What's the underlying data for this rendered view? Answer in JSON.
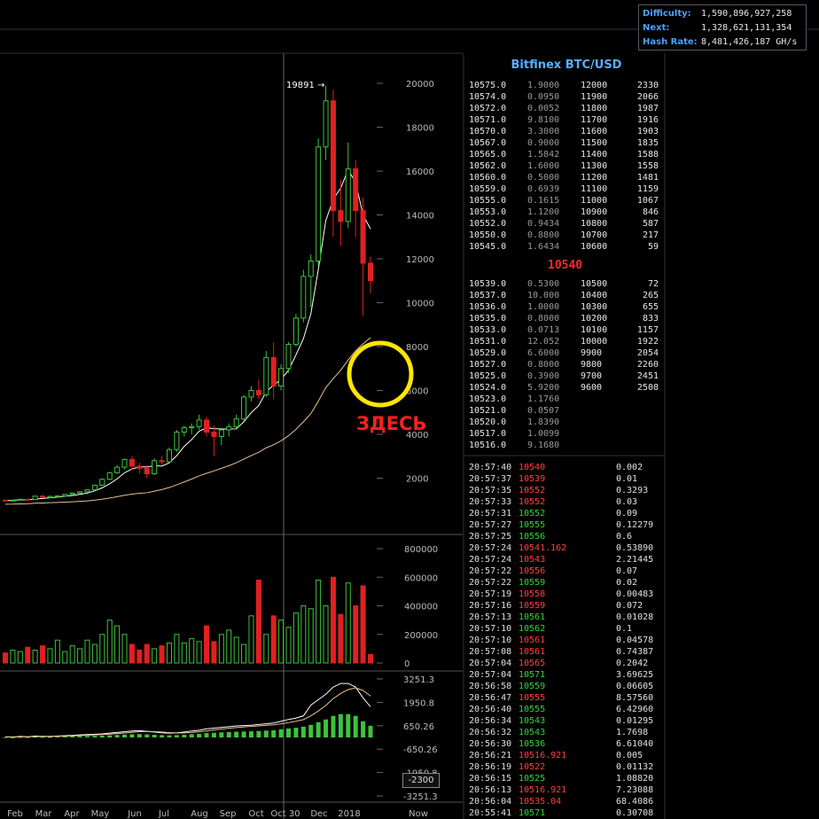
{
  "stats": {
    "difficulty_label": "Difficulty:",
    "difficulty": "1,590,896,927,258",
    "next_label": "Next:",
    "next": "1,328,621,131,354",
    "hashrate_label": "Hash Rate:",
    "hashrate": "8,481,426,187 GH/s"
  },
  "orderbook": {
    "title": "Bitfinex BTC/USD",
    "last_price": "10540",
    "asks": [
      [
        "10575.0",
        "1.9",
        "000",
        "12000",
        "2330"
      ],
      [
        "10574.0",
        "0.0950",
        "",
        "11900",
        "2066"
      ],
      [
        "10572.0",
        "0.0052",
        "",
        "11800",
        "1987"
      ],
      [
        "10571.0",
        "9.8100",
        "",
        "11700",
        "1916"
      ],
      [
        "10570.0",
        "3.3000",
        "",
        "11600",
        "1903"
      ],
      [
        "10567.0",
        "0.9000",
        "",
        "11500",
        "1835"
      ],
      [
        "10565.0",
        "1.5842",
        "",
        "11400",
        "1588"
      ],
      [
        "10562.0",
        "1.6000",
        "",
        "11300",
        "1558"
      ],
      [
        "10560.0",
        "0.5000",
        "",
        "11200",
        "1481"
      ],
      [
        "10559.0",
        "0.6939",
        "",
        "11100",
        "1159"
      ],
      [
        "10555.0",
        "0.1615",
        "",
        "11000",
        "1067"
      ],
      [
        "10553.0",
        "1.1200",
        "",
        "10900",
        "846"
      ],
      [
        "10552.0",
        "0.9434",
        "",
        "10800",
        "587"
      ],
      [
        "10550.0",
        "0.8800",
        "",
        "10700",
        "217"
      ],
      [
        "10545.0",
        "1.6434",
        "",
        "10600",
        "59"
      ]
    ],
    "bids": [
      [
        "10539.0",
        "0.5300",
        "",
        "10500",
        "72"
      ],
      [
        "10537.0",
        "10.000",
        "",
        "10400",
        "265"
      ],
      [
        "10536.0",
        "1.0000",
        "",
        "10300",
        "655"
      ],
      [
        "10535.0",
        "0.8000",
        "",
        "10200",
        "833"
      ],
      [
        "10533.0",
        "0.0713",
        "",
        "10100",
        "1157"
      ],
      [
        "10531.0",
        "12.052",
        "",
        "10000",
        "1922"
      ],
      [
        "10529.0",
        "6.6000",
        "",
        "9900",
        "2054"
      ],
      [
        "10527.0",
        "0.8000",
        "",
        "9800",
        "2260"
      ],
      [
        "10525.0",
        "0.3900",
        "",
        "9700",
        "2451"
      ],
      [
        "10524.0",
        "5.9200",
        "",
        "9600",
        "2508"
      ],
      [
        "10523.0",
        "1.1760",
        "",
        "",
        ""
      ],
      [
        "10521.0",
        "0.0507",
        "",
        "",
        ""
      ],
      [
        "10520.0",
        "1.8390",
        "",
        "",
        ""
      ],
      [
        "10517.0",
        "1.0099",
        "",
        "",
        ""
      ],
      [
        "10516.0",
        "9.1680",
        "",
        "",
        ""
      ]
    ]
  },
  "trades": [
    [
      "20:57:40",
      "10540",
      "dn",
      "0.002"
    ],
    [
      "20:57:37",
      "10539",
      "dn",
      "0.01"
    ],
    [
      "20:57:35",
      "10552",
      "dn",
      "0.3293"
    ],
    [
      "20:57:33",
      "10552",
      "dn",
      "0.03"
    ],
    [
      "20:57:31",
      "10552",
      "up",
      "0.09"
    ],
    [
      "20:57:27",
      "10555",
      "up",
      "0.12279"
    ],
    [
      "20:57:25",
      "10556",
      "up",
      "0.6"
    ],
    [
      "20:57:24",
      "10541.162",
      "dn",
      "0.53890"
    ],
    [
      "20:57:24",
      "10543",
      "dn",
      "2.21445"
    ],
    [
      "20:57:22",
      "10556",
      "dn",
      "0.07"
    ],
    [
      "20:57:22",
      "10559",
      "up",
      "0.02"
    ],
    [
      "20:57:19",
      "10558",
      "dn",
      "0.00483"
    ],
    [
      "20:57:16",
      "10559",
      "dn",
      "0.072"
    ],
    [
      "20:57:13",
      "10561",
      "up",
      "0.01028"
    ],
    [
      "20:57:10",
      "10562",
      "up",
      "0.1"
    ],
    [
      "20:57:10",
      "10561",
      "dn",
      "0.04578"
    ],
    [
      "20:57:08",
      "10561",
      "dn",
      "0.74387"
    ],
    [
      "20:57:04",
      "10565",
      "dn",
      "0.2042"
    ],
    [
      "20:57:04",
      "10571",
      "up",
      "3.69625"
    ],
    [
      "20:56:58",
      "10559",
      "up",
      "0.06605"
    ],
    [
      "20:56:47",
      "10555",
      "dn",
      "8.57560"
    ],
    [
      "20:56:40",
      "10555",
      "up",
      "6.42960"
    ],
    [
      "20:56:34",
      "10543",
      "up",
      "0.01295"
    ],
    [
      "20:56:32",
      "10543",
      "up",
      "1.7698"
    ],
    [
      "20:56:30",
      "10536",
      "up",
      "6.61040"
    ],
    [
      "20:56:21",
      "10516.921",
      "dn",
      "0.005"
    ],
    [
      "20:56:19",
      "10522",
      "dn",
      "0.01132"
    ],
    [
      "20:56:15",
      "10525",
      "up",
      "1.08820"
    ],
    [
      "20:56:13",
      "10516.921",
      "dn",
      "7.23088"
    ],
    [
      "20:56:04",
      "10535.04",
      "dn",
      "68.4086"
    ],
    [
      "20:55:41",
      "10571",
      "up",
      "0.30708"
    ]
  ],
  "chart_data": {
    "type": "candlestick",
    "price_ticks": [
      "2000",
      "4000",
      "6000",
      "8000",
      "10000",
      "12000",
      "14000",
      "16000",
      "18000",
      "20000"
    ],
    "volume_ticks": [
      "0",
      "200000",
      "400000",
      "600000",
      "800000"
    ],
    "macd_ticks": [
      "3251.3",
      "1950.8",
      "650.26",
      "-650.26",
      "-1950.8",
      "-3251.3"
    ],
    "date_labels": [
      "Feb",
      "Mar",
      "Apr",
      "May",
      "Jun",
      "Jul",
      "Aug",
      "Sep",
      "Oct",
      "Oct 30",
      "Dec",
      "2018",
      "Now"
    ],
    "peak_label": "19891 →",
    "macd_current": "-2300",
    "annotation": "ЗДЕСЬ",
    "candles": [
      [
        1000,
        1010,
        960,
        990
      ],
      [
        990,
        1005,
        970,
        1000
      ],
      [
        1000,
        1050,
        990,
        1040
      ],
      [
        1040,
        1070,
        1000,
        1030
      ],
      [
        1030,
        1200,
        1020,
        1180
      ],
      [
        1180,
        1230,
        1100,
        1120
      ],
      [
        1120,
        1190,
        1080,
        1170
      ],
      [
        1170,
        1220,
        1130,
        1190
      ],
      [
        1190,
        1280,
        1150,
        1260
      ],
      [
        1260,
        1350,
        1230,
        1320
      ],
      [
        1320,
        1400,
        1280,
        1380
      ],
      [
        1380,
        1500,
        1350,
        1470
      ],
      [
        1470,
        1700,
        1450,
        1680
      ],
      [
        1680,
        2000,
        1650,
        1950
      ],
      [
        1950,
        2300,
        1900,
        2250
      ],
      [
        2250,
        2600,
        2200,
        2500
      ],
      [
        2500,
        2900,
        2400,
        2850
      ],
      [
        2850,
        3000,
        2400,
        2550
      ],
      [
        2550,
        2700,
        2200,
        2450
      ],
      [
        2450,
        2600,
        2000,
        2200
      ],
      [
        2200,
        2900,
        2150,
        2800
      ],
      [
        2800,
        3000,
        2600,
        2750
      ],
      [
        2750,
        3400,
        2700,
        3300
      ],
      [
        3300,
        4200,
        3200,
        4100
      ],
      [
        4100,
        4400,
        3900,
        4300
      ],
      [
        4300,
        4500,
        4000,
        4350
      ],
      [
        4350,
        4900,
        4200,
        4650
      ],
      [
        4650,
        4800,
        3900,
        4100
      ],
      [
        4100,
        4400,
        3000,
        3900
      ],
      [
        3900,
        4300,
        3500,
        4200
      ],
      [
        4200,
        4500,
        3900,
        4350
      ],
      [
        4350,
        4900,
        4200,
        4700
      ],
      [
        4700,
        5800,
        4600,
        5700
      ],
      [
        5700,
        6200,
        5500,
        6000
      ],
      [
        6000,
        6500,
        5600,
        5800
      ],
      [
        5800,
        7800,
        5700,
        7500
      ],
      [
        7500,
        8200,
        5600,
        6200
      ],
      [
        6200,
        7200,
        6000,
        7000
      ],
      [
        7000,
        8200,
        6800,
        8100
      ],
      [
        8100,
        9500,
        8000,
        9300
      ],
      [
        9300,
        11500,
        9100,
        11200
      ],
      [
        11200,
        12200,
        9800,
        11900
      ],
      [
        11900,
        17500,
        11700,
        17100
      ],
      [
        17100,
        19891,
        16500,
        19200
      ],
      [
        19200,
        19700,
        13000,
        14200
      ],
      [
        14200,
        15600,
        12600,
        13700
      ],
      [
        13700,
        17300,
        13400,
        16100
      ],
      [
        16100,
        16500,
        13000,
        14200
      ],
      [
        14200,
        14800,
        9400,
        11800
      ],
      [
        11800,
        12100,
        10400,
        11000
      ]
    ],
    "volumes": [
      70000,
      90000,
      80000,
      110000,
      90000,
      120000,
      100000,
      160000,
      80000,
      120000,
      100000,
      160000,
      130000,
      200000,
      300000,
      260000,
      200000,
      130000,
      90000,
      130000,
      100000,
      120000,
      140000,
      200000,
      140000,
      170000,
      150000,
      260000,
      150000,
      200000,
      230000,
      180000,
      130000,
      330000,
      580000,
      200000,
      330000,
      300000,
      250000,
      350000,
      400000,
      380000,
      580000,
      400000,
      600000,
      340000,
      560000,
      400000,
      540000,
      60000
    ],
    "macd_hist": [
      20,
      10,
      30,
      20,
      40,
      30,
      30,
      40,
      50,
      60,
      70,
      80,
      90,
      100,
      120,
      140,
      160,
      180,
      190,
      170,
      150,
      130,
      120,
      130,
      150,
      180,
      200,
      240,
      260,
      280,
      300,
      320,
      330,
      340,
      360,
      380,
      400,
      450,
      500,
      540,
      600,
      700,
      850,
      1000,
      1200,
      1300,
      1300,
      1200,
      900,
      650
    ],
    "price_ylim": [
      0,
      21000
    ],
    "volume_ylim": [
      0,
      800000
    ],
    "macd_ylim": [
      -3251.3,
      3251.3
    ]
  }
}
